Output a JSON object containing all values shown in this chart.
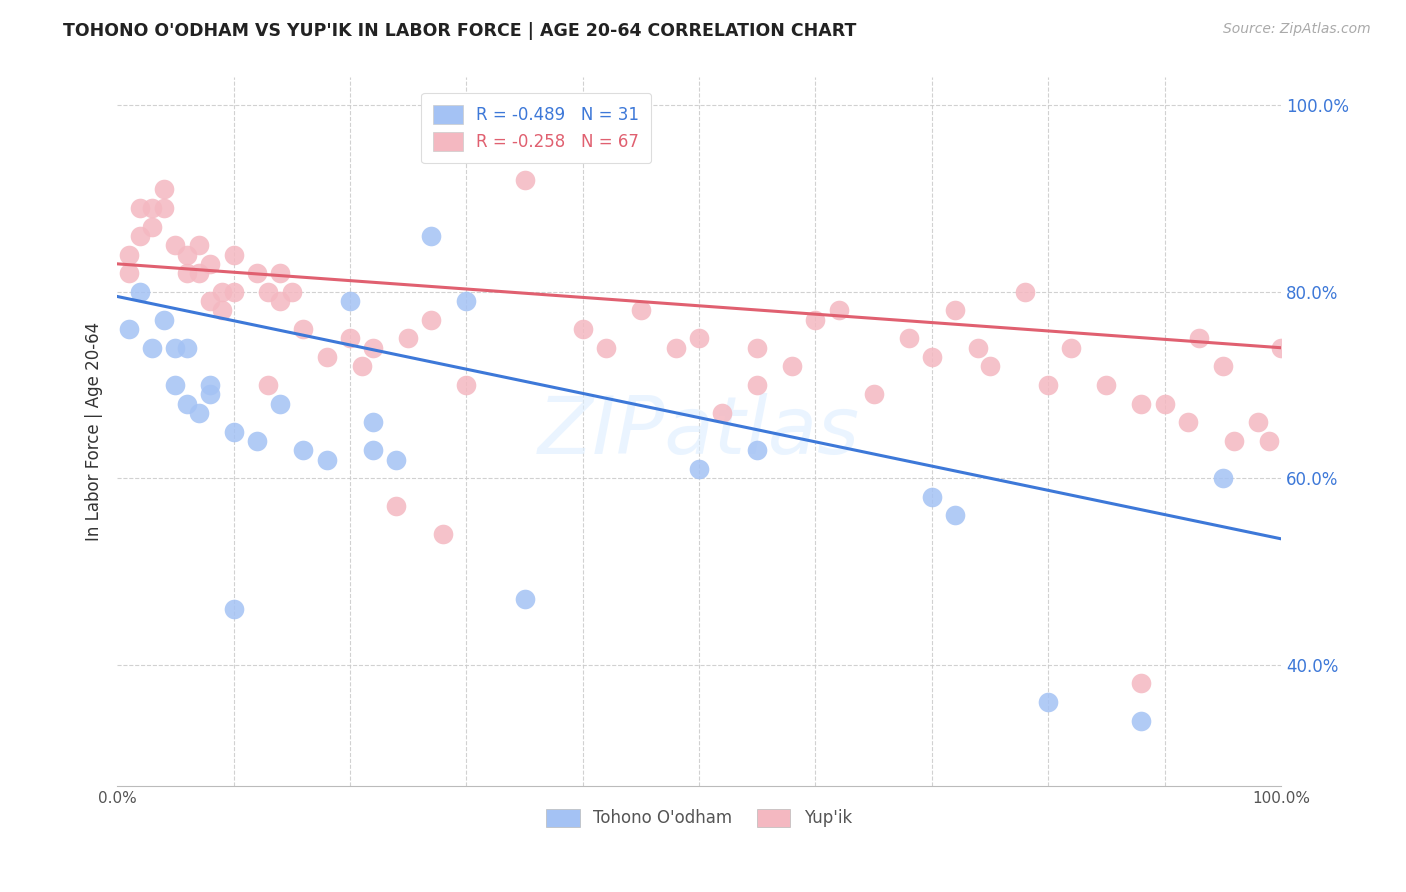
{
  "title": "TOHONO O'ODHAM VS YUP'IK IN LABOR FORCE | AGE 20-64 CORRELATION CHART",
  "source": "Source: ZipAtlas.com",
  "ylabel": "In Labor Force | Age 20-64",
  "xlim": [
    0.0,
    1.0
  ],
  "ylim": [
    0.27,
    1.03
  ],
  "yticks": [
    0.4,
    0.6,
    0.8,
    1.0
  ],
  "ytick_labels": [
    "40.0%",
    "60.0%",
    "80.0%",
    "100.0%"
  ],
  "watermark": "ZIPatlas",
  "legend_r1": "R = -0.489",
  "legend_n1": "N = 31",
  "legend_r2": "R = -0.258",
  "legend_n2": "N = 67",
  "color_blue": "#a4c2f4",
  "color_pink": "#f4b8c1",
  "trendline_blue": "#3d78d8",
  "trendline_pink": "#e06070",
  "legend_label1": "Tohono O'odham",
  "legend_label2": "Yup'ik",
  "blue_scatter_x": [
    0.01,
    0.02,
    0.03,
    0.04,
    0.05,
    0.05,
    0.06,
    0.06,
    0.07,
    0.08,
    0.1,
    0.12,
    0.14,
    0.16,
    0.18,
    0.2,
    0.22,
    0.22,
    0.24,
    0.27,
    0.3,
    0.35,
    0.5,
    0.55,
    0.7,
    0.72,
    0.8,
    0.88,
    0.95,
    0.1,
    0.08
  ],
  "blue_scatter_y": [
    0.76,
    0.8,
    0.74,
    0.77,
    0.74,
    0.7,
    0.74,
    0.68,
    0.67,
    0.69,
    0.46,
    0.64,
    0.68,
    0.63,
    0.62,
    0.79,
    0.66,
    0.63,
    0.62,
    0.86,
    0.79,
    0.47,
    0.61,
    0.63,
    0.58,
    0.56,
    0.36,
    0.34,
    0.6,
    0.65,
    0.7
  ],
  "pink_scatter_x": [
    0.01,
    0.01,
    0.02,
    0.02,
    0.03,
    0.03,
    0.04,
    0.04,
    0.05,
    0.06,
    0.06,
    0.07,
    0.07,
    0.08,
    0.08,
    0.09,
    0.09,
    0.1,
    0.1,
    0.12,
    0.13,
    0.14,
    0.14,
    0.15,
    0.16,
    0.18,
    0.2,
    0.21,
    0.22,
    0.24,
    0.25,
    0.27,
    0.28,
    0.3,
    0.35,
    0.4,
    0.42,
    0.45,
    0.48,
    0.5,
    0.52,
    0.55,
    0.55,
    0.58,
    0.6,
    0.62,
    0.65,
    0.68,
    0.7,
    0.72,
    0.74,
    0.75,
    0.78,
    0.8,
    0.82,
    0.85,
    0.88,
    0.9,
    0.92,
    0.93,
    0.95,
    0.96,
    0.98,
    0.99,
    1.0,
    0.88,
    0.13
  ],
  "pink_scatter_y": [
    0.84,
    0.82,
    0.86,
    0.89,
    0.89,
    0.87,
    0.91,
    0.89,
    0.85,
    0.82,
    0.84,
    0.85,
    0.82,
    0.83,
    0.79,
    0.8,
    0.78,
    0.84,
    0.8,
    0.82,
    0.8,
    0.79,
    0.82,
    0.8,
    0.76,
    0.73,
    0.75,
    0.72,
    0.74,
    0.57,
    0.75,
    0.77,
    0.54,
    0.7,
    0.92,
    0.76,
    0.74,
    0.78,
    0.74,
    0.75,
    0.67,
    0.7,
    0.74,
    0.72,
    0.77,
    0.78,
    0.69,
    0.75,
    0.73,
    0.78,
    0.74,
    0.72,
    0.8,
    0.7,
    0.74,
    0.7,
    0.68,
    0.68,
    0.66,
    0.75,
    0.72,
    0.64,
    0.66,
    0.64,
    0.74,
    0.38,
    0.7
  ],
  "blue_trend_x0": 0.0,
  "blue_trend_y0": 0.795,
  "blue_trend_x1": 1.0,
  "blue_trend_y1": 0.535,
  "pink_trend_x0": 0.0,
  "pink_trend_y0": 0.83,
  "pink_trend_x1": 1.0,
  "pink_trend_y1": 0.74
}
